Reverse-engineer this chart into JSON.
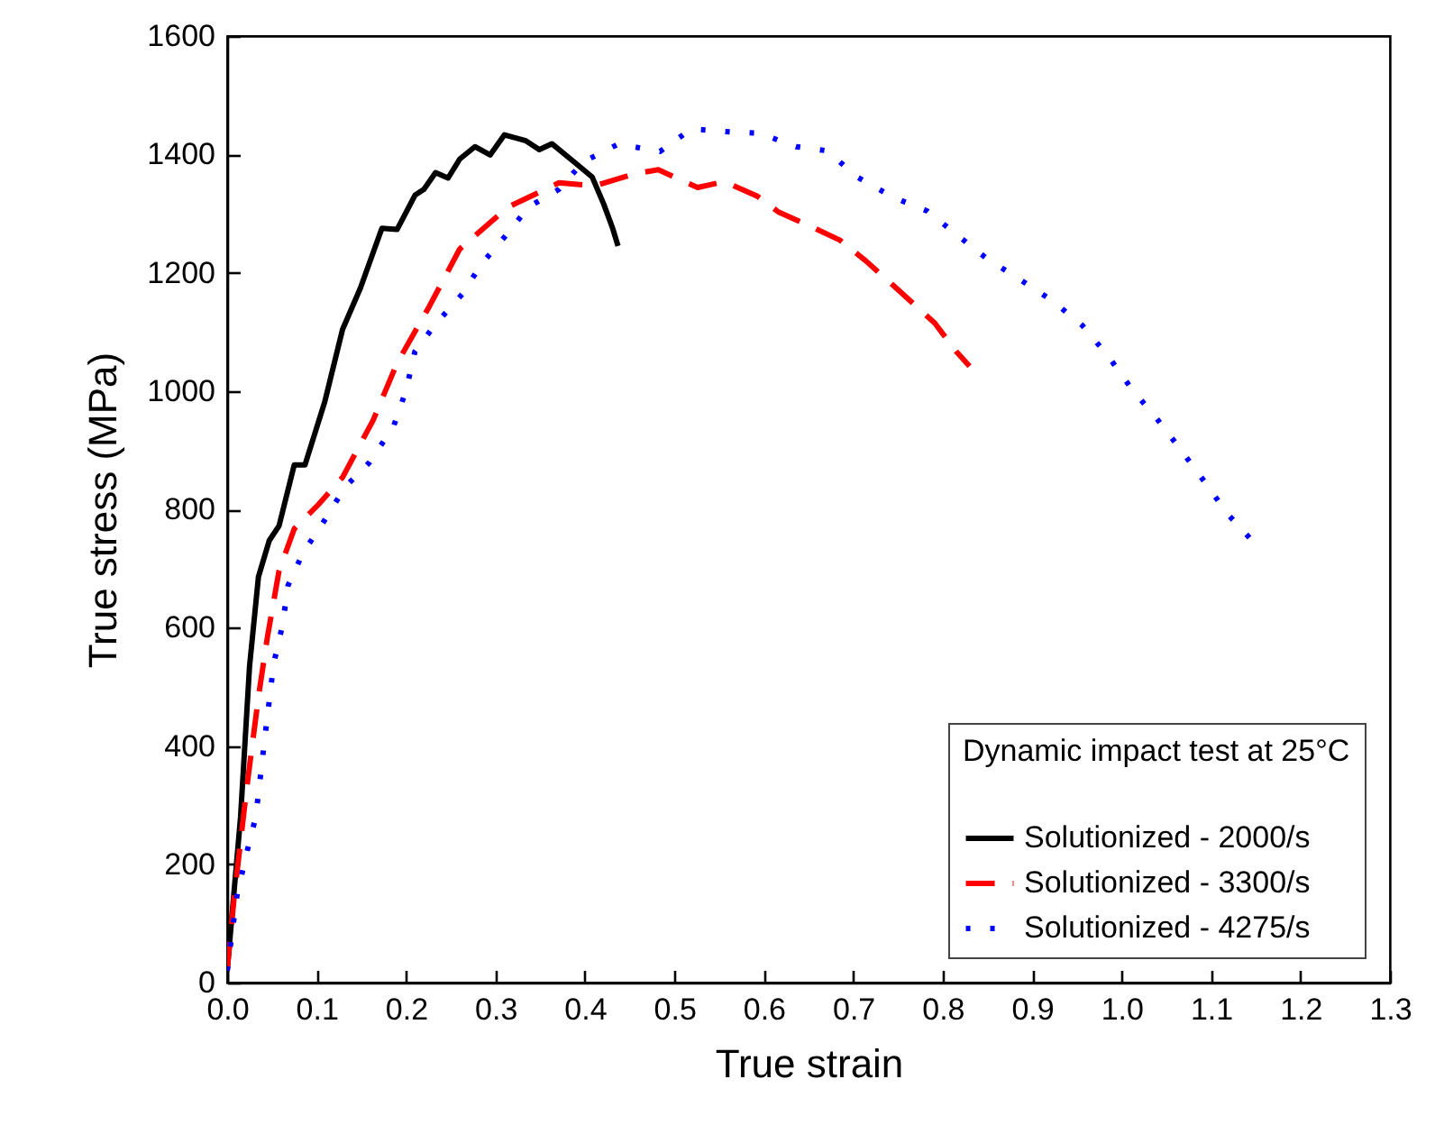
{
  "chart_data": {
    "type": "line",
    "xlabel": "True strain",
    "ylabel": "True stress (MPa)",
    "legend_title": "Dynamic impact test at 25°C",
    "legend": "bottom right",
    "grid": false,
    "xlim": [
      0,
      1.3
    ],
    "ylim": [
      0,
      1600
    ],
    "xticks": [
      {
        "value": 0,
        "label": "0.0"
      },
      {
        "value": 0.1,
        "label": "0.1"
      },
      {
        "value": 0.2,
        "label": "0.2"
      },
      {
        "value": 0.3,
        "label": "0.3"
      },
      {
        "value": 0.4,
        "label": "0.4"
      },
      {
        "value": 0.5,
        "label": "0.5"
      },
      {
        "value": 0.6,
        "label": "0.6"
      },
      {
        "value": 0.7,
        "label": "0.7"
      },
      {
        "value": 0.8,
        "label": "0.8"
      },
      {
        "value": 0.9,
        "label": "0.9"
      },
      {
        "value": 1,
        "label": "1.0"
      },
      {
        "value": 1.1,
        "label": "1.1"
      },
      {
        "value": 1.2,
        "label": "1.2"
      },
      {
        "value": 1.3,
        "label": "1.3"
      }
    ],
    "yticks": [
      0,
      200,
      400,
      600,
      800,
      1000,
      1200,
      1400,
      1600
    ],
    "series": [
      {
        "name": "Solutionized - 2000/s",
        "color": "#000000",
        "line_style": "solid",
        "x": [
          0,
          0.015,
          0.025,
          0.035,
          0.047,
          0.058,
          0.075,
          0.087,
          0.109,
          0.129,
          0.149,
          0.173,
          0.19,
          0.21,
          0.22,
          0.233,
          0.247,
          0.26,
          0.277,
          0.294,
          0.31,
          0.334,
          0.349,
          0.363,
          0.388,
          0.408,
          0.421,
          0.431,
          0.437
        ],
        "values": [
          20,
          280,
          534,
          686,
          747,
          772,
          875,
          875,
          981,
          1104,
          1174,
          1275,
          1273,
          1331,
          1341,
          1369,
          1360,
          1392,
          1413,
          1399,
          1433,
          1423,
          1408,
          1418,
          1387,
          1362,
          1316,
          1275,
          1245
        ]
      },
      {
        "name": "Solutionized - 3300/s",
        "color": "#ff0000",
        "line_style": "dashed",
        "x": [
          0,
          0.008,
          0.022,
          0.035,
          0.045,
          0.058,
          0.075,
          0.102,
          0.129,
          0.163,
          0.19,
          0.226,
          0.26,
          0.314,
          0.371,
          0.411,
          0.455,
          0.482,
          0.526,
          0.556,
          0.593,
          0.616,
          0.657,
          0.685,
          0.714,
          0.737,
          0.767,
          0.791,
          0.815,
          0.83
        ],
        "values": [
          20,
          147,
          330,
          483,
          584,
          696,
          767,
          808,
          854,
          950,
          1047,
          1143,
          1240,
          1311,
          1352,
          1347,
          1367,
          1374,
          1344,
          1354,
          1329,
          1303,
          1275,
          1255,
          1220,
          1189,
          1148,
          1115,
          1067,
          1042
        ]
      },
      {
        "name": "Solutionized - 4275/s",
        "color": "#0000ff",
        "line_style": "dotted",
        "x": [
          0,
          0.011,
          0.022,
          0.032,
          0.042,
          0.052,
          0.062,
          0.068,
          0.085,
          0.105,
          0.132,
          0.159,
          0.186,
          0.2,
          0.21,
          0.233,
          0.263,
          0.284,
          0.31,
          0.337,
          0.371,
          0.398,
          0.438,
          0.446,
          0.484,
          0.519,
          0.562,
          0.595,
          0.636,
          0.671,
          0.704,
          0.744,
          0.783,
          0.815,
          0.85,
          0.886,
          0.923,
          0.956,
          0.985,
          1.011,
          1.04,
          1.067,
          1.094,
          1.118,
          1.149
        ],
        "values": [
          20,
          147,
          220,
          280,
          412,
          539,
          605,
          671,
          727,
          772,
          838,
          879,
          940,
          1001,
          1067,
          1113,
          1164,
          1214,
          1260,
          1311,
          1341,
          1387,
          1418,
          1415,
          1405,
          1443,
          1438,
          1436,
          1413,
          1406,
          1362,
          1328,
          1304,
          1265,
          1223,
          1189,
          1152,
          1111,
          1059,
          1004,
          952,
          899,
          844,
          793,
          742
        ]
      }
    ]
  }
}
